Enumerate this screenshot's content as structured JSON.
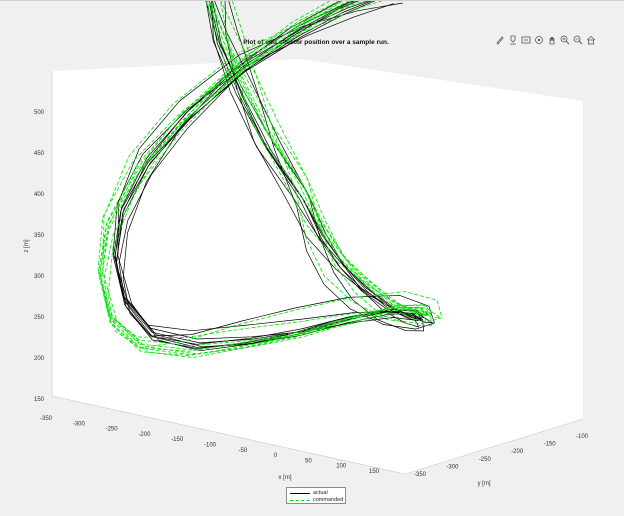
{
  "chart_data": {
    "type": "line",
    "projection": "3d",
    "title": "Plot of end effector position over a sample run.",
    "xlabel": "x [m]",
    "ylabel": "y [m]",
    "zlabel": "z [m]",
    "xlim": [
      -350,
      150
    ],
    "ylim": [
      -350,
      -100
    ],
    "zlim": [
      150,
      500
    ],
    "x_ticks": [
      "-350",
      "-300",
      "-250",
      "-200",
      "-150",
      "-100",
      "-50",
      "0",
      "50",
      "100",
      "150"
    ],
    "y_ticks": [
      "-350",
      "-300",
      "-250",
      "-200",
      "-150",
      "-100"
    ],
    "z_ticks": [
      "150",
      "200",
      "250",
      "300",
      "350",
      "400",
      "450",
      "500"
    ],
    "grid": false,
    "legend_position": "bottom-center",
    "series": [
      {
        "name": "actual",
        "color": "#000000",
        "style": "solid",
        "trajectory": {
          "x": [
            -10,
            -65,
            -120,
            -180,
            -230,
            -265,
            -285,
            -290,
            -280,
            -250,
            -200,
            -140,
            -80,
            -20,
            40,
            80,
            100,
            90,
            60,
            20,
            -20,
            -60,
            -100,
            -160,
            -210,
            -250,
            -270,
            -255,
            -220,
            -170,
            -110,
            -50,
            10,
            55
          ],
          "y": [
            -300,
            -290,
            -270,
            -240,
            -200,
            -170,
            -150,
            -145,
            -150,
            -160,
            -180,
            -200,
            -215,
            -225,
            -230,
            -225,
            -210,
            -200,
            -195,
            -200,
            -210,
            -225,
            -245,
            -265,
            -285,
            -300,
            -310,
            -320,
            -330,
            -340,
            -345,
            -350,
            -350,
            -345
          ],
          "z": [
            455,
            440,
            425,
            405,
            380,
            350,
            310,
            260,
            210,
            170,
            150,
            148,
            155,
            170,
            185,
            195,
            205,
            215,
            225,
            232,
            240,
            250,
            265,
            290,
            320,
            355,
            390,
            420,
            440,
            455,
            462,
            466,
            468,
            470
          ]
        }
      },
      {
        "name": "commanded",
        "color": "#00e000",
        "style": "dashed",
        "trajectory": {
          "x": [
            -5,
            -60,
            -118,
            -182,
            -236,
            -275,
            -300,
            -305,
            -295,
            -262,
            -208,
            -145,
            -82,
            -18,
            45,
            88,
            108,
            96,
            64,
            22,
            -22,
            -64,
            -106,
            -168,
            -222,
            -265,
            -290,
            -275,
            -238,
            -184,
            -118,
            -52,
            12,
            60
          ],
          "y": [
            -305,
            -295,
            -272,
            -238,
            -196,
            -164,
            -142,
            -136,
            -142,
            -155,
            -176,
            -198,
            -215,
            -227,
            -234,
            -230,
            -214,
            -202,
            -196,
            -202,
            -213,
            -230,
            -252,
            -274,
            -295,
            -312,
            -322,
            -332,
            -341,
            -349,
            -350,
            -350,
            -350,
            -348
          ],
          "z": [
            460,
            446,
            430,
            408,
            380,
            346,
            300,
            248,
            196,
            160,
            145,
            145,
            152,
            168,
            186,
            198,
            208,
            220,
            230,
            238,
            246,
            258,
            274,
            300,
            334,
            372,
            410,
            444,
            468,
            486,
            494,
            498,
            500,
            500
          ]
        }
      }
    ]
  },
  "toolbar": {
    "icons": [
      "brush-icon",
      "data-tip-icon",
      "link-icon",
      "rotate-icon",
      "pan-icon",
      "zoom-in-icon",
      "zoom-out-icon",
      "home-icon"
    ]
  }
}
